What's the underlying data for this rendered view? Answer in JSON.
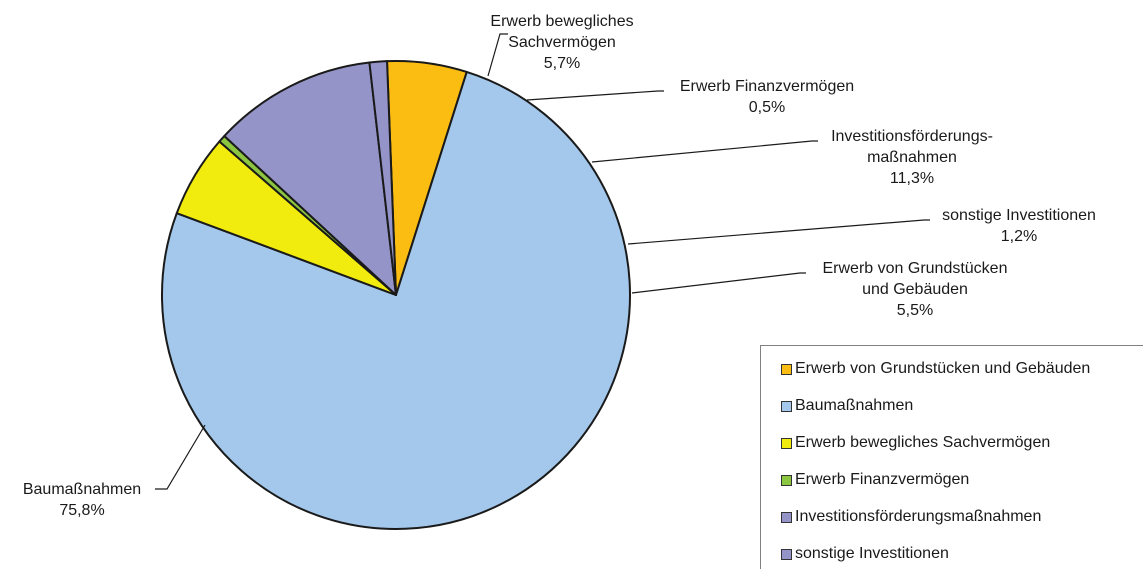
{
  "chart_data": {
    "type": "pie",
    "slices": [
      {
        "legend": "Erwerb von Grundstücken und Gebäuden",
        "label_lines": [
          "Erwerb von Grundstücken",
          "und Gebäuden"
        ],
        "value": 5.5,
        "value_label": "5,5%",
        "color": "#FBBD12"
      },
      {
        "legend": "Baumaßnahmen",
        "label_lines": [
          "Baumaßnahmen"
        ],
        "value": 75.8,
        "value_label": "75,8%",
        "color": "#A3C8EB"
      },
      {
        "legend": "Erwerb bewegliches Sachvermögen",
        "label_lines": [
          "Erwerb bewegliches",
          "Sachvermögen"
        ],
        "value": 5.7,
        "value_label": "5,7%",
        "color": "#F2EC0E"
      },
      {
        "legend": "Erwerb Finanzvermögen",
        "label_lines": [
          "Erwerb Finanzvermögen"
        ],
        "value": 0.5,
        "value_label": "0,5%",
        "color": "#8CC540"
      },
      {
        "legend": "Investitionsförderungsmaßnahmen",
        "label_lines": [
          "Investitionsförderungs-",
          "maßnahmen"
        ],
        "value": 11.3,
        "value_label": "11,3%",
        "color": "#9594C9"
      },
      {
        "legend": "sonstige Investitionen",
        "label_lines": [
          "sonstige Investitionen"
        ],
        "value": 1.2,
        "value_label": "1,2%",
        "color": "#9594C9"
      }
    ],
    "legend_position": "bottom-right"
  }
}
